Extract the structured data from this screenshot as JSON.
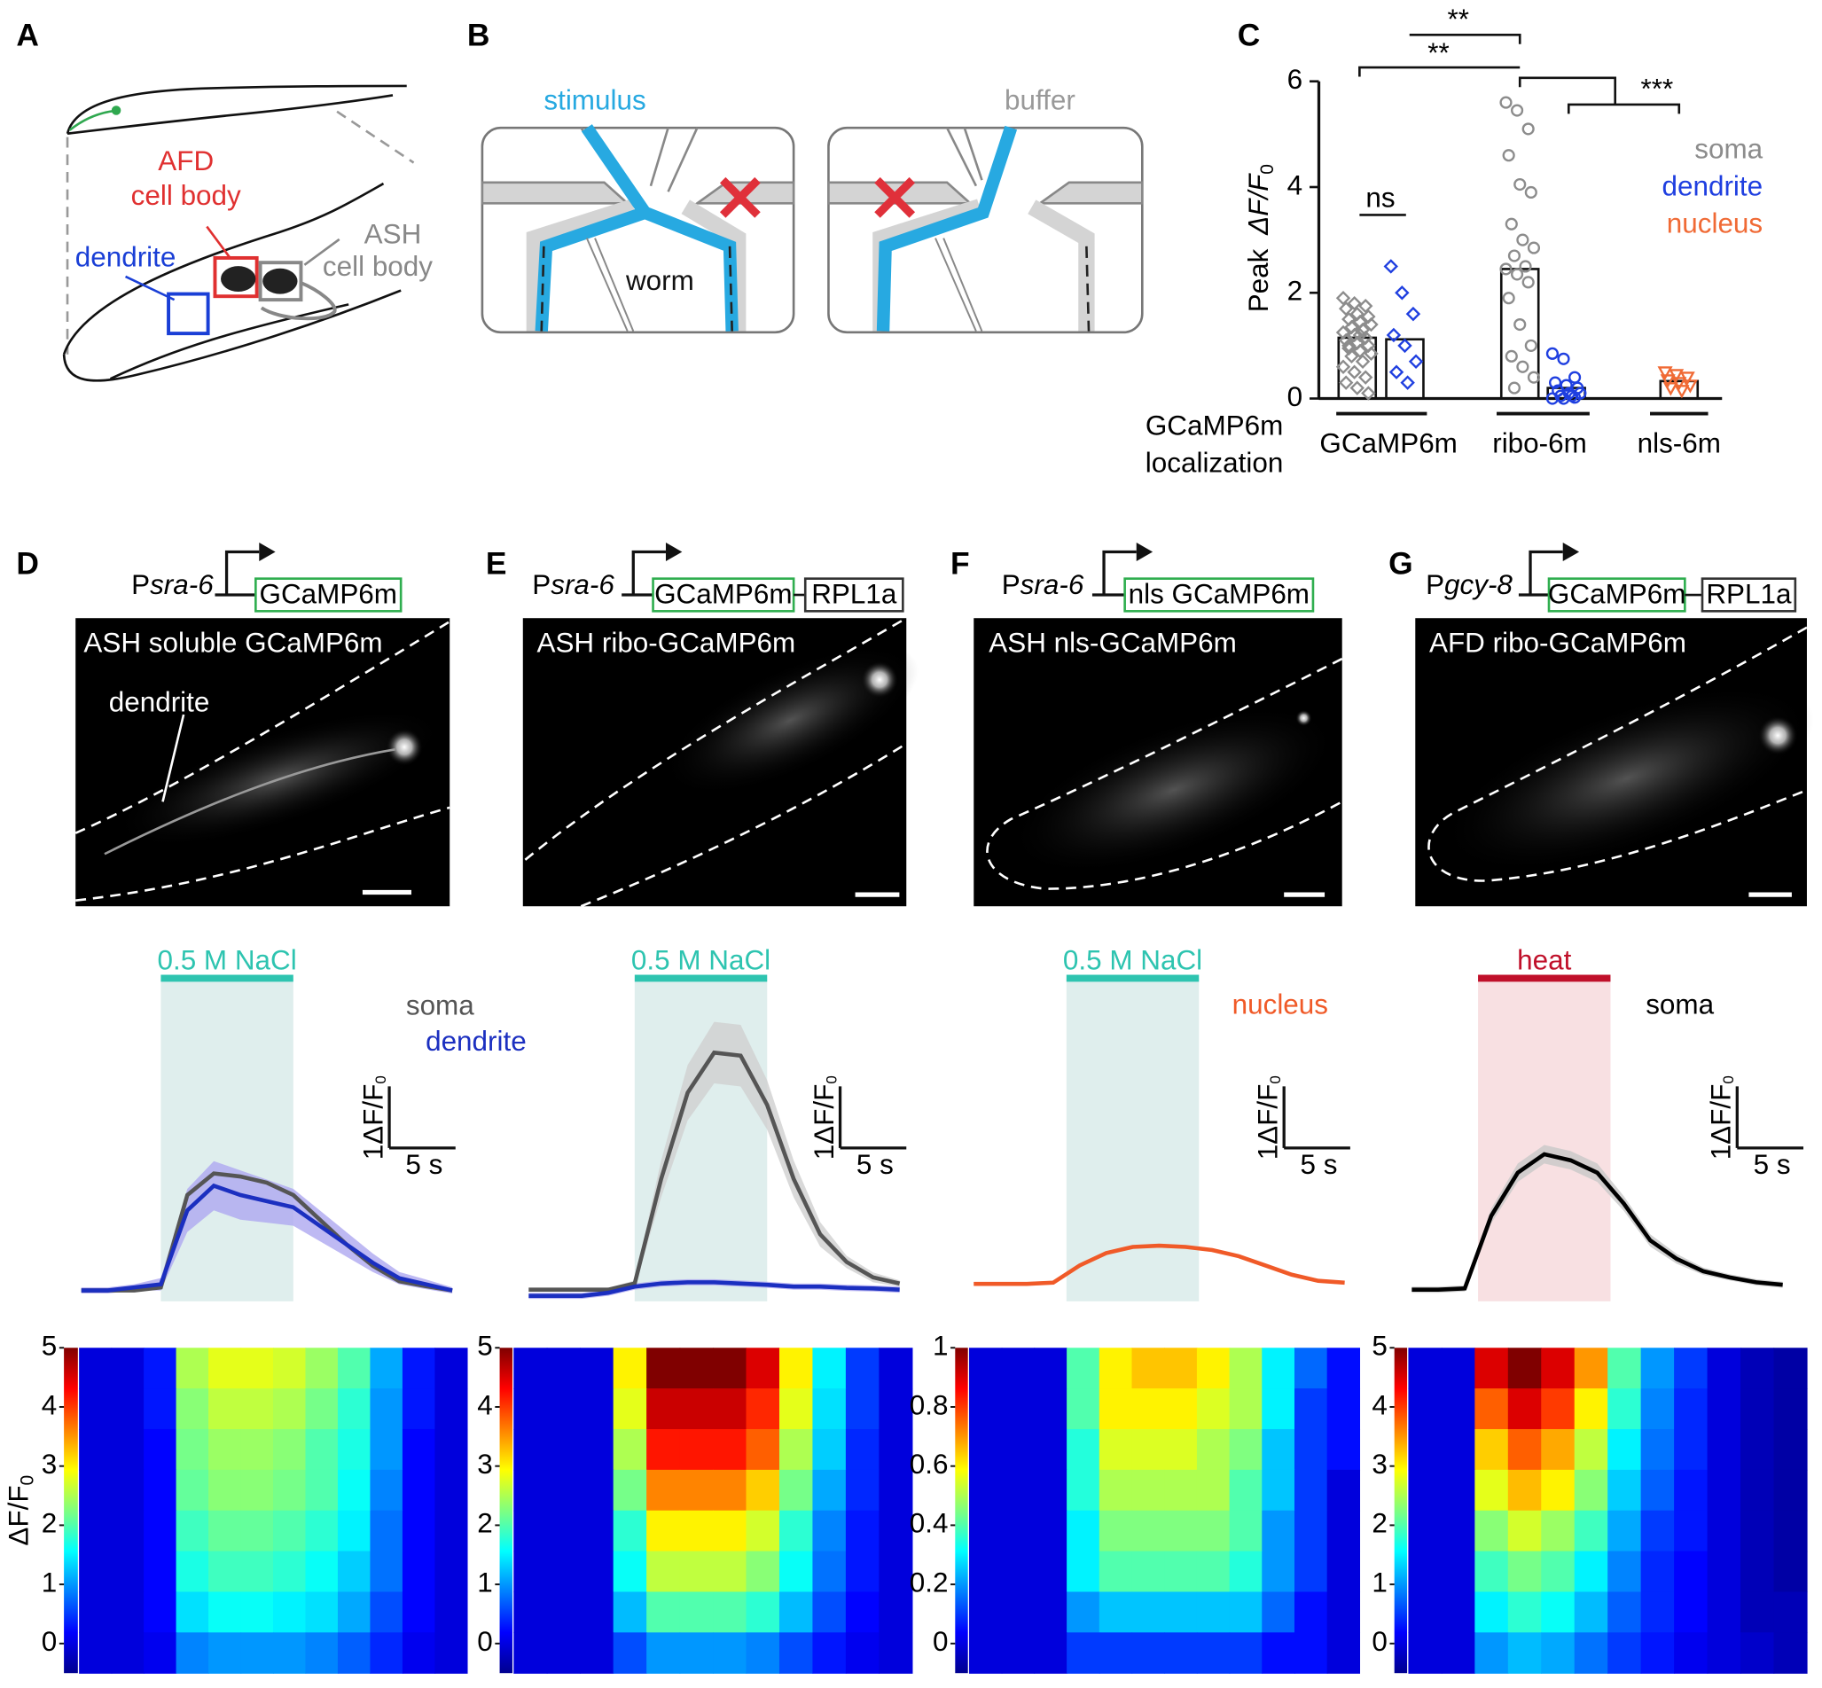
{
  "panel_labels": [
    "A",
    "B",
    "C",
    "D",
    "E",
    "F",
    "G"
  ],
  "panel_a": {
    "afd": [
      "AFD",
      "cell body"
    ],
    "ash": [
      "ASH",
      "cell body"
    ],
    "dendrite": "dendrite"
  },
  "panel_b": {
    "stimulus": "stimulus",
    "buffer": "buffer",
    "worm": "worm"
  },
  "constructs": [
    {
      "promoter_prefix": "P",
      "promoter": "sra-6",
      "boxes": [
        "GCaMP6m"
      ]
    },
    {
      "promoter_prefix": "P",
      "promoter": "sra-6",
      "boxes": [
        "GCaMP6m",
        "RPL1a"
      ]
    },
    {
      "promoter_prefix": "P",
      "promoter": "sra-6",
      "boxes": [
        "nls GCaMP6m"
      ]
    },
    {
      "promoter_prefix": "P",
      "promoter": "gcy-8",
      "boxes": [
        "GCaMP6m",
        "RPL1a"
      ]
    }
  ],
  "images": [
    {
      "label": "ASH soluble GCaMP6m",
      "annotation": "dendrite"
    },
    {
      "label": "ASH ribo-GCaMP6m"
    },
    {
      "label": "ASH nls-GCaMP6m"
    },
    {
      "label": "AFD ribo-GCaMP6m"
    }
  ],
  "chart_data": [
    {
      "type": "bar",
      "y_label": "Peak",
      "y_label_math": "ΔF/F",
      "y_label_sub": "0",
      "x_label": [
        "GCaMP6m",
        "localization"
      ],
      "categories": [
        "GCaMP6m",
        "ribo-6m",
        "nls-6m"
      ],
      "ylim": [
        0,
        6
      ],
      "yticks": [
        0,
        2,
        4,
        6
      ],
      "series": [
        {
          "name": "soma",
          "color": "#8c8c8c"
        },
        {
          "name": "dendrite",
          "color": "#1f3fe0"
        },
        {
          "name": "nucleus",
          "color": "#f06a35"
        }
      ],
      "bars": [
        {
          "category": 0,
          "series": 0,
          "marker": "diamond",
          "value": 1.15,
          "points": [
            1.9,
            1.8,
            1.75,
            1.7,
            1.6,
            1.55,
            1.5,
            1.45,
            1.4,
            1.35,
            1.3,
            1.25,
            1.2,
            1.15,
            1.1,
            1.05,
            1.0,
            0.95,
            0.9,
            0.85,
            0.8,
            0.7,
            0.6,
            0.5,
            0.4,
            0.3,
            0.2,
            0.1,
            1.0,
            1.2
          ]
        },
        {
          "category": 0,
          "series": 1,
          "marker": "diamond",
          "value": 1.12,
          "points": [
            2.5,
            2.0,
            1.6,
            1.2,
            1.0,
            0.7,
            0.5,
            0.3
          ]
        },
        {
          "category": 1,
          "series": 0,
          "marker": "circle",
          "value": 2.45,
          "points": [
            5.6,
            5.45,
            5.1,
            4.6,
            4.05,
            3.9,
            3.3,
            3.0,
            2.85,
            2.7,
            2.5,
            2.45,
            2.35,
            2.2,
            1.9,
            1.4,
            1.0,
            0.8,
            0.6,
            0.4,
            0.2
          ]
        },
        {
          "category": 1,
          "series": 1,
          "marker": "circle",
          "value": 0.2,
          "points": [
            0.85,
            0.75,
            0.4,
            0.3,
            0.25,
            0.2,
            0.15,
            0.1,
            0.1,
            0.05,
            0.05,
            0.0,
            0.0,
            0.02
          ]
        },
        {
          "category": 2,
          "series": 2,
          "marker": "triangle",
          "value": 0.33,
          "points": [
            0.5,
            0.45,
            0.4,
            0.35,
            0.3,
            0.25,
            0.2,
            0.15
          ]
        }
      ],
      "significance": [
        {
          "label": "ns"
        },
        {
          "label": "**"
        },
        {
          "label": "**"
        },
        {
          "label": "***"
        }
      ]
    },
    {
      "type": "line",
      "x": [
        0,
        2,
        4,
        6,
        8,
        10,
        12,
        14,
        16,
        18,
        20,
        22,
        24,
        26,
        28
      ],
      "stimulus": {
        "label": "0.5 M NaCl",
        "color": "#2ec4b0",
        "shade": "#dfeeed",
        "x": [
          6,
          16
        ]
      },
      "series": [
        {
          "name": "soma",
          "color": "#555555",
          "values": [
            -0.05,
            -0.05,
            -0.05,
            0,
            1.5,
            1.85,
            1.8,
            1.7,
            1.5,
            1.1,
            0.7,
            0.35,
            0.1,
            0.02,
            -0.05
          ]
        },
        {
          "name": "dendrite",
          "color": "#1b2fc0",
          "band_color": "#aea8f0",
          "values": [
            -0.05,
            -0.05,
            0,
            0.05,
            1.25,
            1.65,
            1.5,
            1.4,
            1.3,
            1.0,
            0.7,
            0.4,
            0.15,
            0.05,
            -0.05
          ],
          "error": [
            0.05,
            0.05,
            0.05,
            0.1,
            0.35,
            0.4,
            0.4,
            0.35,
            0.3,
            0.25,
            0.2,
            0.15,
            0.1,
            0.08,
            0.05
          ]
        }
      ],
      "x_scale": {
        "value": 5,
        "label": "5 s"
      },
      "y_scale": {
        "value": 1,
        "label": "1ΔF/F"
      },
      "y_scale_sub": "0"
    },
    {
      "type": "line",
      "x": [
        0,
        2,
        4,
        6,
        8,
        10,
        12,
        14,
        16,
        18,
        20,
        22,
        24,
        26,
        28
      ],
      "stimulus": {
        "label": "0.5 M NaCl",
        "color": "#2ec4b0",
        "shade": "#dfeeed",
        "x": [
          8,
          18
        ]
      },
      "series": [
        {
          "color": "#555555",
          "band_color": "#cfcfcf",
          "values": [
            0,
            0,
            0,
            0,
            0.1,
            1.8,
            3.2,
            3.85,
            3.8,
            3.0,
            1.8,
            0.9,
            0.45,
            0.2,
            0.1
          ],
          "error": [
            0.03,
            0.03,
            0.03,
            0.03,
            0.05,
            0.3,
            0.45,
            0.5,
            0.5,
            0.4,
            0.3,
            0.2,
            0.1,
            0.08,
            0.05
          ]
        },
        {
          "color": "#1b2fc0",
          "band_color": "#aea8f0",
          "values": [
            -0.1,
            -0.1,
            -0.1,
            -0.05,
            0.05,
            0.1,
            0.12,
            0.12,
            0.1,
            0.08,
            0.05,
            0.05,
            0.03,
            0.02,
            0.0
          ],
          "error": [
            0.05,
            0.05,
            0.05,
            0.05,
            0.05,
            0.05,
            0.05,
            0.05,
            0.05,
            0.05,
            0.05,
            0.05,
            0.05,
            0.05,
            0.05
          ]
        }
      ],
      "x_scale": {
        "value": 5,
        "label": "5 s"
      },
      "y_scale": {
        "value": 1,
        "label": "1ΔF/F"
      },
      "y_scale_sub": "0"
    },
    {
      "type": "line",
      "x": [
        0,
        2,
        4,
        6,
        8,
        10,
        12,
        14,
        16,
        18,
        20,
        22,
        24,
        26,
        28
      ],
      "stimulus": {
        "label": "0.5 M NaCl",
        "color": "#2ec4b0",
        "shade": "#dfeeed",
        "x": [
          7,
          17
        ]
      },
      "series": [
        {
          "name": "nucleus",
          "color": "#f05a28",
          "band_color": "#cfcfcf",
          "values": [
            0,
            0,
            0,
            0.02,
            0.3,
            0.5,
            0.6,
            0.62,
            0.6,
            0.55,
            0.45,
            0.3,
            0.15,
            0.05,
            0.02
          ],
          "error": [
            0.03,
            0.03,
            0.03,
            0.03,
            0.03,
            0.03,
            0.03,
            0.03,
            0.03,
            0.03,
            0.03,
            0.03,
            0.03,
            0.03,
            0.03
          ]
        }
      ],
      "x_scale": {
        "value": 5,
        "label": "5 s"
      },
      "y_scale": {
        "value": 1,
        "label": "1ΔF/F"
      },
      "y_scale_sub": "0"
    },
    {
      "type": "line",
      "x": [
        0,
        2,
        4,
        6,
        8,
        10,
        12,
        14,
        16,
        18,
        20,
        22,
        24,
        26,
        28
      ],
      "stimulus": {
        "label": "heat",
        "color": "#c0102a",
        "shade": "#f8e0e2",
        "x": [
          5,
          15
        ]
      },
      "series": [
        {
          "name": "soma",
          "color": "#000000",
          "band_color": "#c8c8c8",
          "values": [
            0,
            0,
            0.02,
            1.2,
            1.9,
            2.2,
            2.1,
            1.9,
            1.4,
            0.8,
            0.5,
            0.3,
            0.2,
            0.12,
            0.08
          ],
          "error": [
            0.05,
            0.05,
            0.05,
            0.12,
            0.15,
            0.15,
            0.15,
            0.15,
            0.12,
            0.1,
            0.08,
            0.06,
            0.05,
            0.05,
            0.05
          ]
        }
      ],
      "x_scale": {
        "value": 5,
        "label": "5 s"
      },
      "y_scale": {
        "value": 1,
        "label": "1ΔF/F"
      },
      "y_scale_sub": "0"
    },
    {
      "type": "heatmap",
      "y_label": "ΔF/F",
      "y_label_sub": "0",
      "ylim": [
        -0.5,
        5
      ],
      "yticks": [
        0,
        1,
        2,
        3,
        4,
        5
      ],
      "matrix": [
        [
          0,
          0,
          0.3,
          2.5,
          2.8,
          2.8,
          2.7,
          2.4,
          2.0,
          1.1,
          0.3,
          0
        ],
        [
          0,
          0,
          0.3,
          2.3,
          2.6,
          2.6,
          2.5,
          2.2,
          1.8,
          1.0,
          0.3,
          0
        ],
        [
          0,
          0,
          0.2,
          2.2,
          2.4,
          2.4,
          2.3,
          2.0,
          1.7,
          1.0,
          0.2,
          0
        ],
        [
          0,
          0,
          0.2,
          2.1,
          2.3,
          2.3,
          2.2,
          2.0,
          1.6,
          0.9,
          0.2,
          0
        ],
        [
          0,
          0,
          0.2,
          1.9,
          2.1,
          2.1,
          2.0,
          1.8,
          1.5,
          0.8,
          0.2,
          0
        ],
        [
          0,
          0,
          0.2,
          1.7,
          1.9,
          1.9,
          1.8,
          1.6,
          1.3,
          0.8,
          0.2,
          0
        ],
        [
          0,
          0,
          0.2,
          1.4,
          1.6,
          1.6,
          1.5,
          1.4,
          1.1,
          0.6,
          0.2,
          0
        ],
        [
          0,
          0,
          0.1,
          0.9,
          1.0,
          1.0,
          1.0,
          0.9,
          0.7,
          0.4,
          0.1,
          0
        ]
      ]
    },
    {
      "type": "heatmap",
      "ylim": [
        -0.5,
        5
      ],
      "yticks": [
        0,
        1,
        2,
        3,
        4,
        5
      ],
      "matrix": [
        [
          0,
          0,
          0,
          3.0,
          5.0,
          5.0,
          5.0,
          4.5,
          3.0,
          1.5,
          0.5,
          0
        ],
        [
          0,
          0,
          0,
          2.8,
          4.6,
          4.6,
          4.6,
          4.1,
          2.8,
          1.4,
          0.5,
          0
        ],
        [
          0,
          0,
          0,
          2.5,
          4.2,
          4.2,
          4.2,
          3.8,
          2.5,
          1.3,
          0.4,
          0
        ],
        [
          0,
          0,
          0,
          2.2,
          3.6,
          3.6,
          3.6,
          3.2,
          2.2,
          1.1,
          0.4,
          0
        ],
        [
          0,
          0,
          0,
          1.8,
          3.0,
          3.0,
          3.0,
          2.7,
          1.8,
          0.9,
          0.3,
          0
        ],
        [
          0,
          0,
          0,
          1.6,
          2.6,
          2.6,
          2.6,
          2.3,
          1.6,
          0.8,
          0.3,
          0
        ],
        [
          0,
          0,
          0,
          1.2,
          2.0,
          2.0,
          2.0,
          1.8,
          1.2,
          0.6,
          0.2,
          0
        ],
        [
          0,
          0,
          0,
          0.6,
          1.0,
          1.0,
          1.0,
          0.9,
          0.6,
          0.3,
          0.1,
          0
        ]
      ]
    },
    {
      "type": "heatmap",
      "ylim": [
        -0.1,
        1
      ],
      "yticks": [
        0,
        0.2,
        0.4,
        0.6,
        0.8,
        1
      ],
      "matrix": [
        [
          0,
          0,
          0,
          0.4,
          0.6,
          0.65,
          0.65,
          0.6,
          0.5,
          0.3,
          0.15,
          0.05
        ],
        [
          0,
          0,
          0,
          0.4,
          0.6,
          0.6,
          0.6,
          0.55,
          0.5,
          0.3,
          0.1,
          0.05
        ],
        [
          0,
          0,
          0,
          0.35,
          0.55,
          0.55,
          0.55,
          0.5,
          0.45,
          0.25,
          0.1,
          0.05
        ],
        [
          0,
          0,
          0,
          0.35,
          0.5,
          0.5,
          0.5,
          0.5,
          0.4,
          0.25,
          0.1,
          0
        ],
        [
          0,
          0,
          0,
          0.3,
          0.45,
          0.45,
          0.45,
          0.45,
          0.4,
          0.2,
          0.1,
          0
        ],
        [
          0,
          0,
          0,
          0.3,
          0.4,
          0.4,
          0.4,
          0.4,
          0.35,
          0.2,
          0.1,
          0
        ],
        [
          0,
          0,
          0,
          0.2,
          0.25,
          0.25,
          0.25,
          0.25,
          0.25,
          0.15,
          0.05,
          0
        ],
        [
          0,
          0,
          0,
          0.1,
          0.1,
          0.1,
          0.1,
          0.1,
          0.1,
          0.05,
          0.05,
          0
        ]
      ]
    },
    {
      "type": "heatmap",
      "ylim": [
        -0.5,
        5
      ],
      "yticks": [
        0,
        1,
        2,
        3,
        4,
        5
      ],
      "matrix": [
        [
          0,
          0,
          4.5,
          5.0,
          4.5,
          3.5,
          2.0,
          1.0,
          0.5,
          0,
          -0.2,
          -0.3
        ],
        [
          0,
          0,
          3.8,
          4.5,
          4.0,
          3.0,
          1.8,
          0.9,
          0.4,
          0,
          -0.2,
          -0.3
        ],
        [
          0,
          0,
          3.2,
          3.8,
          3.4,
          2.6,
          1.5,
          0.8,
          0.4,
          0,
          -0.2,
          -0.3
        ],
        [
          0,
          0,
          2.8,
          3.3,
          3.0,
          2.3,
          1.3,
          0.7,
          0.3,
          0,
          -0.2,
          -0.3
        ],
        [
          0,
          0,
          2.3,
          2.7,
          2.4,
          1.9,
          1.1,
          0.5,
          0.3,
          0,
          -0.2,
          -0.3
        ],
        [
          0,
          0,
          1.9,
          2.2,
          2.0,
          1.5,
          0.9,
          0.4,
          0.2,
          0,
          -0.2,
          -0.3
        ],
        [
          0,
          0,
          1.5,
          1.8,
          1.6,
          1.2,
          0.7,
          0.4,
          0.2,
          0,
          -0.2,
          -0.2
        ],
        [
          0,
          0,
          1.0,
          1.2,
          1.1,
          0.8,
          0.5,
          0.3,
          0.1,
          0,
          -0.1,
          -0.2
        ]
      ]
    }
  ]
}
